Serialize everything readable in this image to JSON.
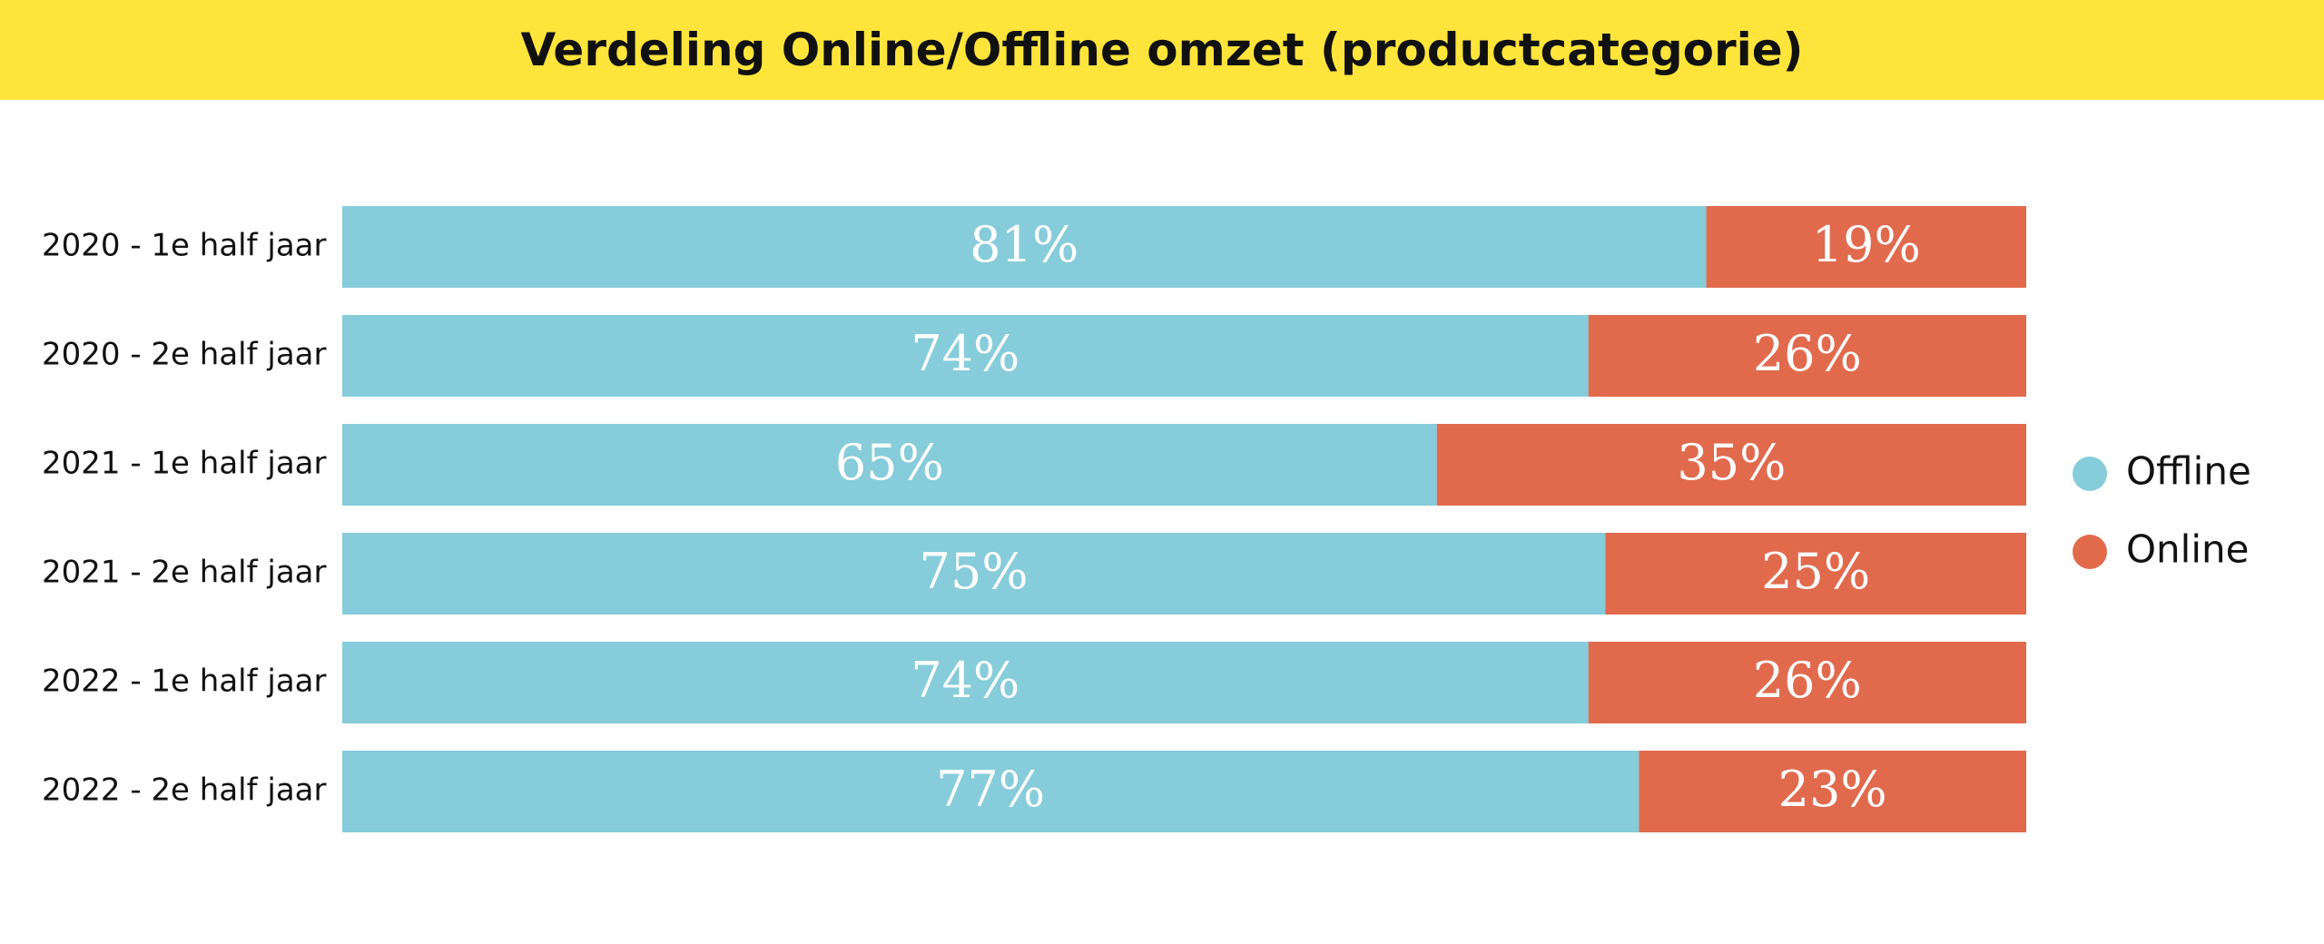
{
  "title": "Verdeling Online/Offline omzet (productcategorie)",
  "colors": {
    "banner": "#ffe53b",
    "offline": "#86ccdb",
    "online": "#e16a4d"
  },
  "chart_data": {
    "type": "bar",
    "orientation": "horizontal",
    "stacked": true,
    "title": "Verdeling Online/Offline omzet (productcategorie)",
    "categories": [
      "2020 - 1e half jaar",
      "2020 - 2e half jaar",
      "2021 - 1e half jaar",
      "2021 - 2e half jaar",
      "2022 - 1e half jaar",
      "2022 - 2e half jaar"
    ],
    "series": [
      {
        "name": "Offline",
        "values": [
          81,
          74,
          65,
          75,
          74,
          77
        ],
        "labels": [
          "81%",
          "74%",
          "65%",
          "75%",
          "74%",
          "77%"
        ]
      },
      {
        "name": "Online",
        "values": [
          19,
          26,
          35,
          25,
          26,
          23
        ],
        "labels": [
          "19%",
          "26%",
          "35%",
          "25%",
          "26%",
          "23%"
        ]
      }
    ],
    "xlim": [
      0,
      100
    ],
    "grid": false,
    "legend_position": "right"
  }
}
